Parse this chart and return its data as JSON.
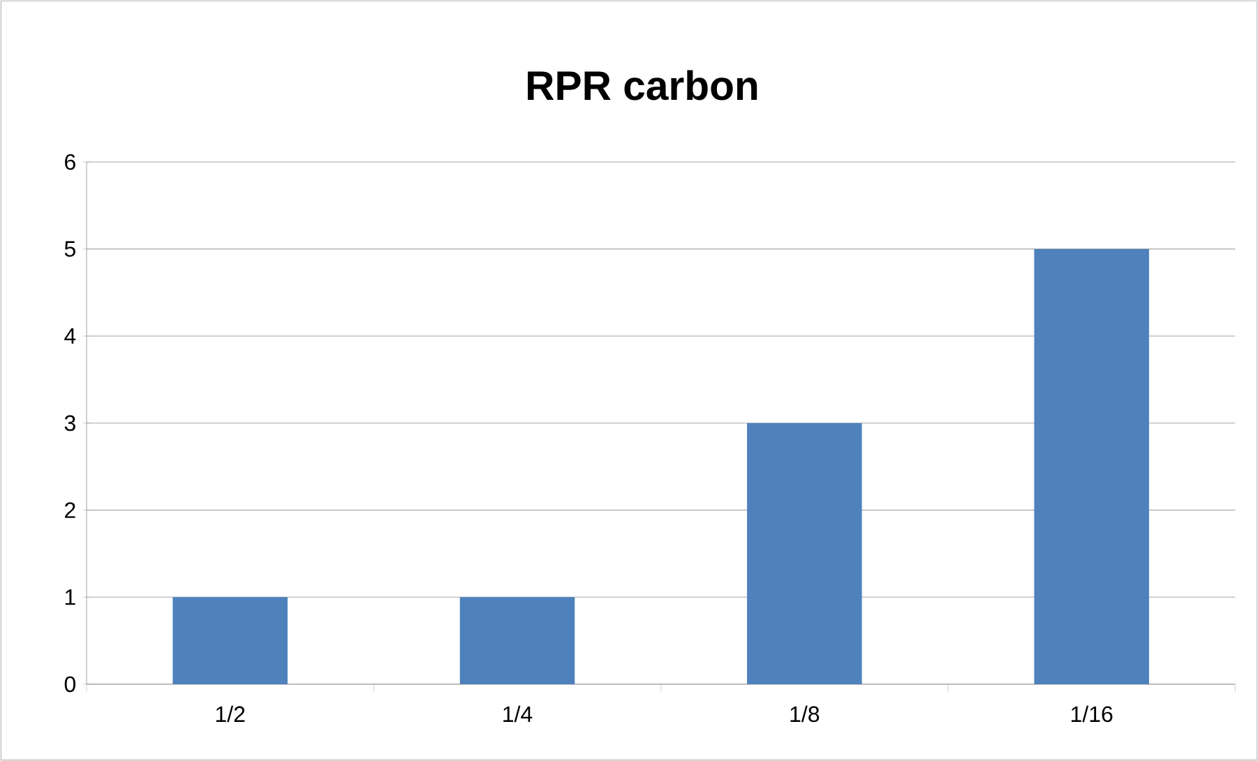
{
  "chart_data": {
    "type": "bar",
    "title": "RPR carbon",
    "categories": [
      "1/2",
      "1/4",
      "1/8",
      "1/16"
    ],
    "values": [
      1,
      1,
      3,
      5
    ],
    "color": "#4f81bd",
    "ylim": [
      0,
      6
    ],
    "yticks": [
      0,
      1,
      2,
      3,
      4,
      5,
      6
    ],
    "grid": "y"
  }
}
